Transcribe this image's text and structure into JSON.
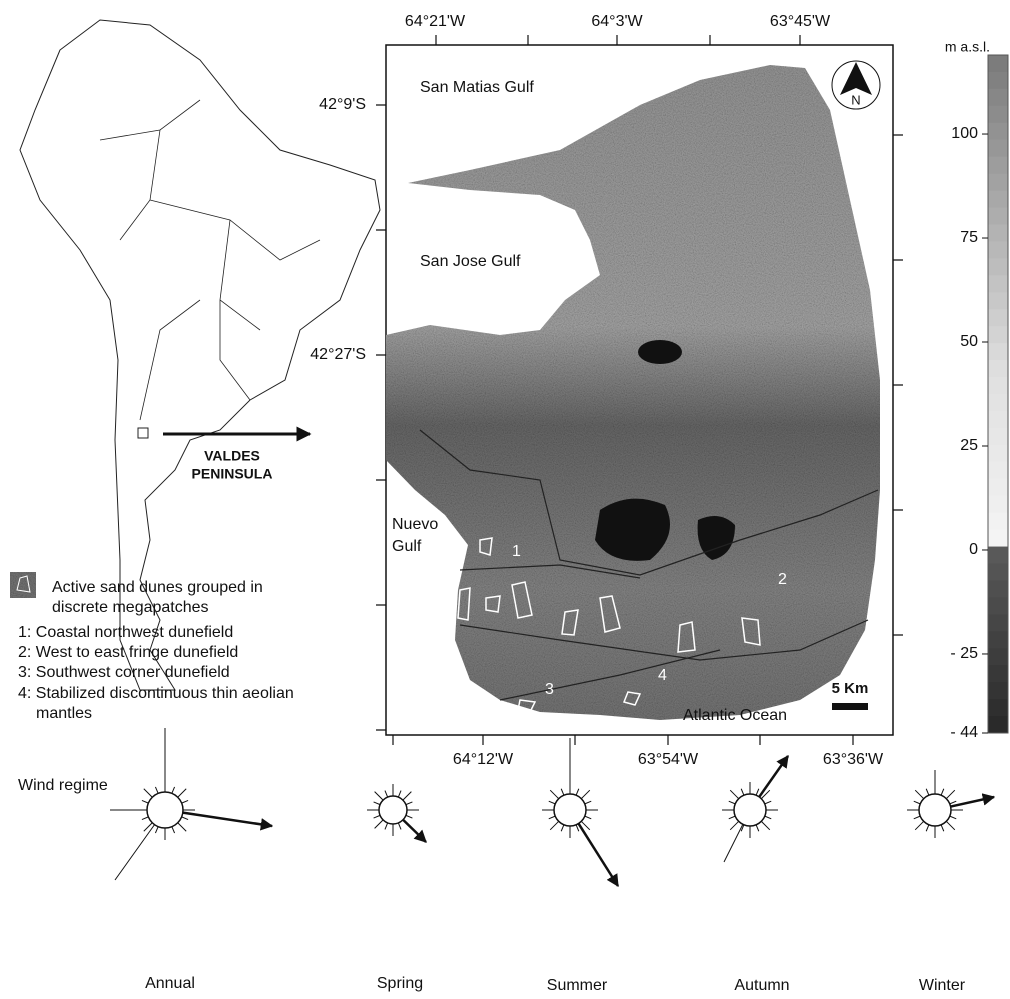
{
  "map": {
    "top_lon_labels": [
      "64°21'W",
      "64°3'W",
      "63°45'W"
    ],
    "bottom_lon_labels": [
      "64°12'W",
      "63°54'W",
      "63°36'W"
    ],
    "lat_labels": [
      "42°9'S",
      "42°27'S"
    ],
    "places": [
      "San Matias Gulf",
      "San Jose Gulf",
      "Nuevo",
      "Gulf",
      "Atlantic Ocean"
    ],
    "zones": [
      "1",
      "2",
      "3",
      "4"
    ],
    "north": "N",
    "scale": "5 Km"
  },
  "inset": {
    "arrow_label": [
      "VALDES",
      "PENINSULA"
    ]
  },
  "colorbar": {
    "unit": "m a.s.l.",
    "lim": [
      -44,
      119
    ],
    "ticks": [
      100,
      75,
      50,
      25,
      0,
      {
        "value": -25,
        "label": "- 25"
      },
      {
        "value": -44,
        "label": "- 44"
      }
    ]
  },
  "legend": {
    "icon_text": [
      "Active sand dunes grouped in",
      "discrete megapatches"
    ],
    "items": [
      "1: Coastal northwest dunefield",
      "2: West to east fringe dunefield",
      "3: Southwest corner dunefield",
      "4: Stabilized discontinuous thin aeolian",
      "mantles"
    ]
  },
  "wind": {
    "title": "Wind regime",
    "labels": [
      "Annual",
      "Spring",
      "Summer",
      "Autumn",
      "Winter"
    ]
  }
}
